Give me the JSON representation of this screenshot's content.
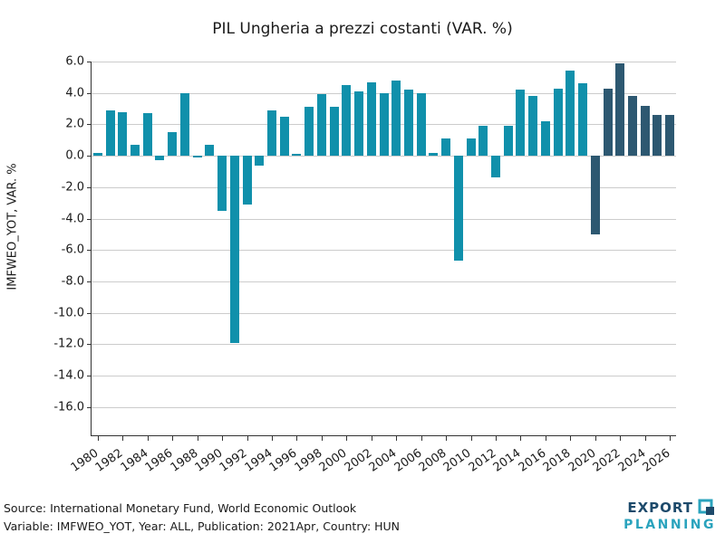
{
  "title": "PIL Ungheria a prezzi costanti (VAR. %)",
  "chart_data": {
    "type": "bar",
    "title": "PIL Ungheria a prezzi costanti (VAR. %)",
    "xlabel": "",
    "ylabel": "IMFWEO_YOT, VAR. %",
    "ylim": [
      -17.8,
      6.0
    ],
    "grid": true,
    "legend": "none",
    "ytick_labels": [
      "6.0",
      "4.0",
      "2.0",
      "0.0",
      "-2.0",
      "-4.0",
      "-6.0",
      "-8.0",
      "-10.0",
      "-12.0",
      "-14.0",
      "-16.0"
    ],
    "x": [
      1980,
      1981,
      1982,
      1983,
      1984,
      1985,
      1986,
      1987,
      1988,
      1989,
      1990,
      1991,
      1992,
      1993,
      1994,
      1995,
      1996,
      1997,
      1998,
      1999,
      2000,
      2001,
      2002,
      2003,
      2004,
      2005,
      2006,
      2007,
      2008,
      2009,
      2010,
      2011,
      2012,
      2013,
      2014,
      2015,
      2016,
      2017,
      2018,
      2019,
      2020,
      2021,
      2022,
      2023,
      2024,
      2025,
      2026
    ],
    "values": [
      0.2,
      2.9,
      2.8,
      0.7,
      2.7,
      -0.3,
      1.5,
      4.0,
      -0.1,
      0.7,
      -3.5,
      -11.9,
      -3.1,
      -0.6,
      2.9,
      2.5,
      0.1,
      3.1,
      3.9,
      3.1,
      4.5,
      4.1,
      4.7,
      4.0,
      4.8,
      4.2,
      4.0,
      0.2,
      1.1,
      -6.7,
      1.1,
      1.9,
      -1.4,
      1.9,
      4.2,
      3.8,
      2.2,
      4.3,
      5.4,
      4.6,
      -5.0,
      4.3,
      5.9,
      3.8,
      3.2,
      2.6,
      2.6
    ],
    "xtick_years": [
      1980,
      1982,
      1984,
      1986,
      1988,
      1990,
      1992,
      1994,
      1996,
      1998,
      2000,
      2002,
      2004,
      2006,
      2008,
      2010,
      2012,
      2014,
      2016,
      2018,
      2020,
      2022,
      2024,
      2026
    ],
    "forecast_start_year": 2020,
    "colors": {
      "historical": "#1090ab",
      "forecast": "#2d5871",
      "gridline": "#cccccc",
      "axis": "#333333"
    }
  },
  "footer": {
    "source_line": "Source: International Monetary Fund, World Economic Outlook",
    "variable_line": "Variable: IMFWEO_YOT, Year: ALL, Publication: 2021Apr, Country: HUN"
  },
  "logo": {
    "line1": "EXPORT",
    "line2": "PLANNING"
  }
}
